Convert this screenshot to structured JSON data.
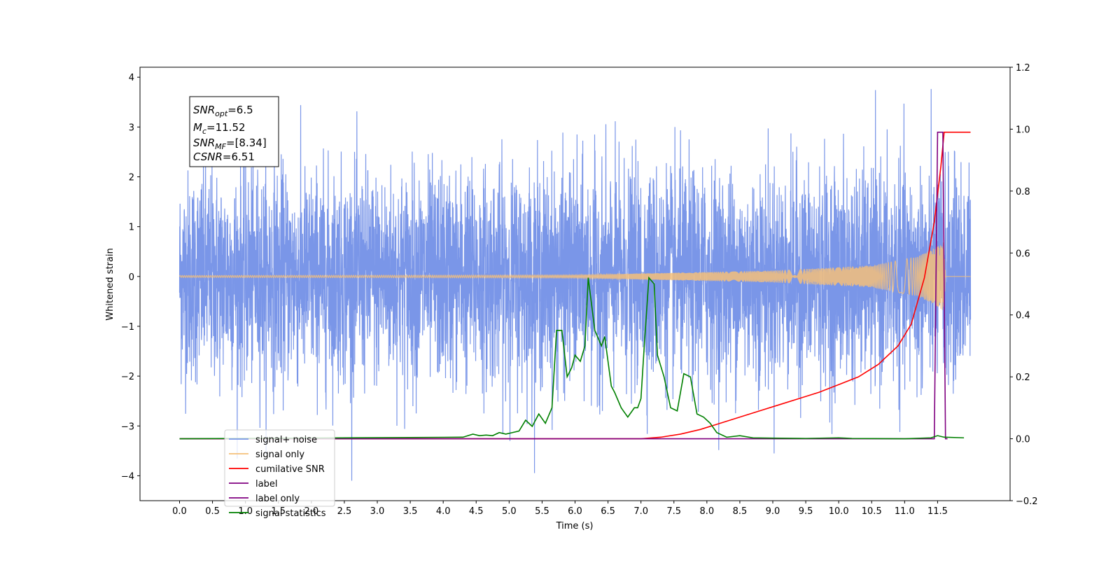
{
  "chart_data": {
    "type": "line",
    "xlabel": "Time (s)",
    "ylabel": "Whitened strain",
    "xlim": [
      -0.6,
      12.6
    ],
    "ylim": [
      -4.5,
      4.2
    ],
    "y2lim": [
      -0.2,
      1.2
    ],
    "x_ticks": [
      "0.0",
      "0.5",
      "1.0",
      "1.5",
      "2.0",
      "2.5",
      "3.0",
      "3.5",
      "4.0",
      "4.5",
      "5.0",
      "5.5",
      "6.0",
      "6.5",
      "7.0",
      "7.5",
      "8.0",
      "8.5",
      "9.0",
      "9.5",
      "10.0",
      "10.5",
      "11.0",
      "11.5"
    ],
    "y_ticks": [
      "4",
      "3",
      "2",
      "1",
      "0",
      "−1",
      "−2",
      "−3",
      "−4"
    ],
    "y2_ticks": [
      "1.2",
      "1.0",
      "0.8",
      "0.6",
      "0.4",
      "0.2",
      "0.0",
      "−0.2"
    ],
    "grid": false,
    "legend_position": "lower-left",
    "annotation": {
      "line1_main": "SNR",
      "line1_sub": "opt",
      "line1_value": "=6.5",
      "line2_main": "M",
      "line2_sub": "c",
      "line2_value": "=11.52",
      "line3_main": "SNR",
      "line3_sub": "MF",
      "line3_value": "=[8.34]",
      "line4_main": "CSNR",
      "line4_value": "=6.51"
    },
    "series": [
      {
        "name": "signal+ noise",
        "axis": "left",
        "color": "#7a96e8",
        "description_kind": "noise",
        "x_range": [
          0.0,
          12.0
        ],
        "std": 1.0,
        "max": 3.8,
        "min": -4.1
      },
      {
        "name": "signal only",
        "axis": "left",
        "color": "#f5c07a",
        "description_kind": "chirp",
        "x_range": [
          0.0,
          12.0
        ],
        "envelope": {
          "x": [
            0.0,
            6.0,
            9.0,
            10.5,
            11.2,
            11.5,
            11.6,
            11.62,
            12.0
          ],
          "amp": [
            0.02,
            0.03,
            0.12,
            0.22,
            0.4,
            0.6,
            0.7,
            0.0,
            0.0
          ]
        }
      },
      {
        "name": "cumilative SNR",
        "axis": "right",
        "color": "#ff0000",
        "x": [
          0.0,
          7.0,
          7.3,
          7.6,
          7.9,
          8.2,
          8.5,
          8.8,
          9.1,
          9.4,
          9.7,
          10.0,
          10.3,
          10.6,
          10.9,
          11.1,
          11.3,
          11.45,
          11.55,
          11.6,
          12.0
        ],
        "y": [
          0.0,
          0.0,
          0.005,
          0.015,
          0.03,
          0.05,
          0.07,
          0.09,
          0.11,
          0.13,
          0.15,
          0.175,
          0.2,
          0.24,
          0.3,
          0.37,
          0.52,
          0.7,
          0.88,
          0.99,
          0.99
        ]
      },
      {
        "name": "label",
        "axis": "right",
        "color": "#800080",
        "x": [
          0.0,
          11.45,
          11.5,
          11.58,
          11.62,
          11.65
        ],
        "y": [
          0.0,
          0.0,
          0.99,
          0.99,
          0.0,
          0.0
        ]
      },
      {
        "name": "label only",
        "axis": "right",
        "color": "#800080",
        "hidden_in_plot": true
      },
      {
        "name": "signal statistics",
        "axis": "right",
        "color": "#008000",
        "x": [
          0.0,
          4.3,
          4.45,
          4.55,
          4.65,
          4.75,
          4.85,
          4.95,
          5.05,
          5.15,
          5.25,
          5.35,
          5.45,
          5.55,
          5.65,
          5.72,
          5.8,
          5.88,
          5.95,
          6.0,
          6.08,
          6.15,
          6.2,
          6.3,
          6.4,
          6.45,
          6.55,
          6.6,
          6.7,
          6.8,
          6.9,
          6.95,
          7.0,
          7.05,
          7.12,
          7.2,
          7.25,
          7.35,
          7.45,
          7.55,
          7.65,
          7.75,
          7.85,
          7.95,
          8.05,
          8.15,
          8.3,
          8.5,
          8.7,
          9.0,
          9.5,
          10.0,
          10.1,
          10.2,
          11.0,
          11.4,
          11.5,
          11.6,
          11.9
        ],
        "y": [
          0.0,
          0.005,
          0.015,
          0.01,
          0.012,
          0.01,
          0.02,
          0.015,
          0.02,
          0.025,
          0.06,
          0.04,
          0.08,
          0.05,
          0.1,
          0.35,
          0.35,
          0.2,
          0.23,
          0.27,
          0.25,
          0.3,
          0.52,
          0.35,
          0.3,
          0.33,
          0.17,
          0.15,
          0.1,
          0.07,
          0.1,
          0.1,
          0.13,
          0.3,
          0.52,
          0.5,
          0.27,
          0.2,
          0.1,
          0.09,
          0.21,
          0.2,
          0.08,
          0.07,
          0.05,
          0.02,
          0.005,
          0.01,
          0.003,
          0.002,
          0.001,
          0.003,
          0.002,
          0.001,
          0.0,
          0.003,
          0.01,
          0.005,
          0.003
        ]
      }
    ]
  }
}
